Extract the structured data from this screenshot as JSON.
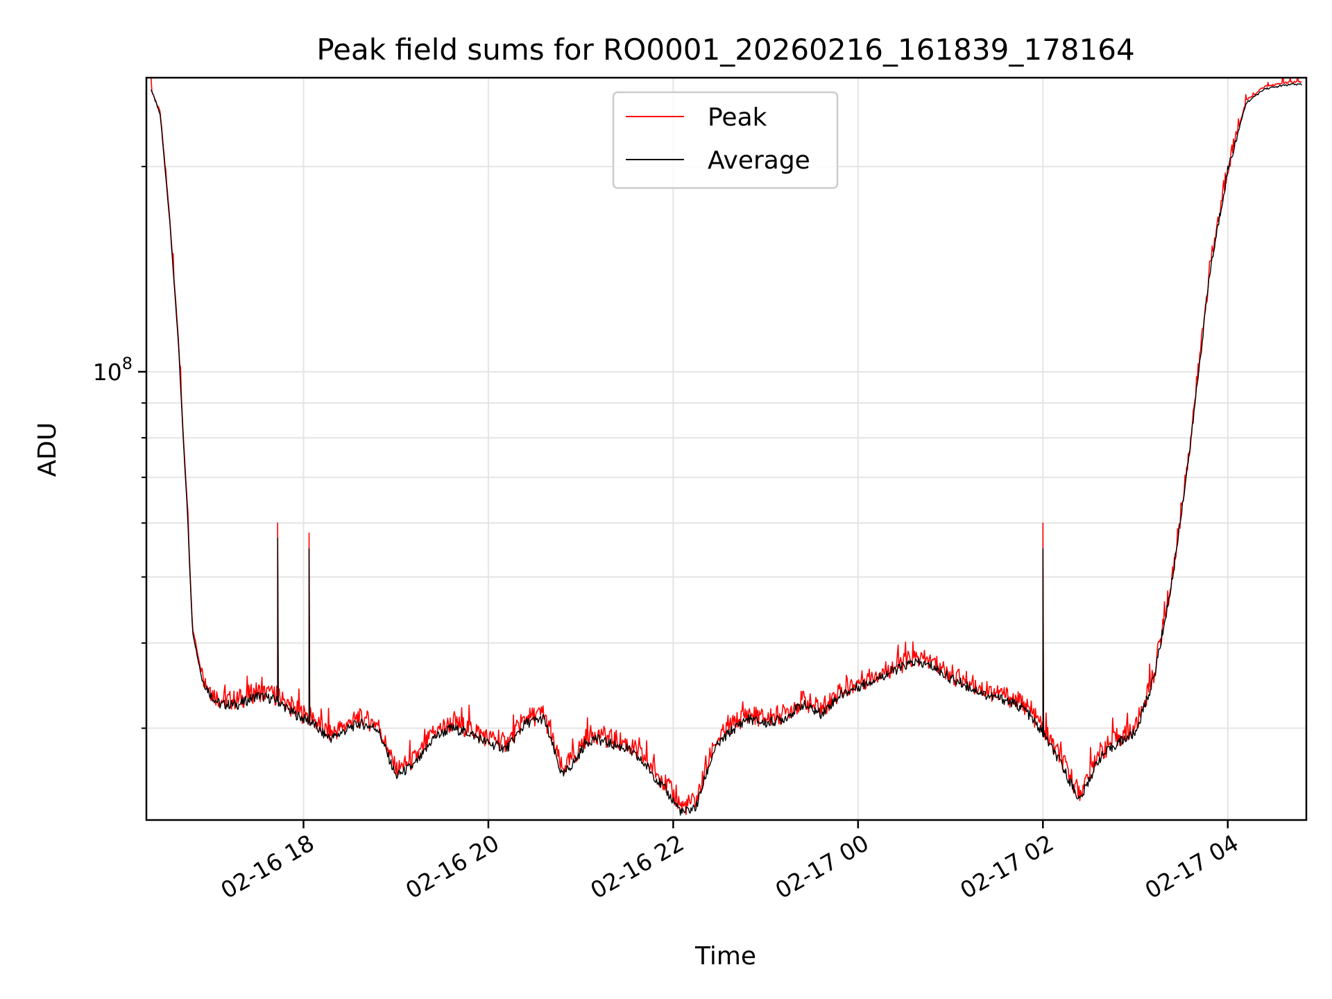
{
  "chart_data": {
    "type": "line",
    "title": "Peak field sums for RO0001_20260216_161839_178164",
    "xlabel": "Time",
    "ylabel": "ADU",
    "yscale": "log",
    "ylim": [
      22000000,
      270000000
    ],
    "xlim": [
      16.3,
      28.85
    ],
    "grid": true,
    "legend_position": "upper center",
    "x_ticks": [
      {
        "value": 18,
        "label": "02-16 18"
      },
      {
        "value": 20,
        "label": "02-16 20"
      },
      {
        "value": 22,
        "label": "02-16 22"
      },
      {
        "value": 24,
        "label": "02-17 00"
      },
      {
        "value": 26,
        "label": "02-17 02"
      },
      {
        "value": 28,
        "label": "02-17 04"
      }
    ],
    "y_ticks": [
      {
        "value": 100000000,
        "base": "10",
        "exponent": "8"
      }
    ],
    "y_minor_ticks": [
      30000000,
      40000000,
      50000000,
      60000000,
      70000000,
      80000000,
      90000000,
      200000000
    ],
    "spikes": [
      {
        "x": 17.72,
        "peak": 60000000,
        "average": 57000000
      },
      {
        "x": 18.06,
        "peak": 58000000,
        "average": 55000000
      },
      {
        "x": 26.0,
        "peak": 60000000,
        "average": 55000000
      }
    ],
    "series": [
      {
        "name": "Peak",
        "color": "#ff0000",
        "x": [
          16.35,
          16.45,
          16.55,
          16.65,
          16.7,
          16.74,
          16.77,
          16.8,
          16.9,
          17.0,
          17.1,
          17.3,
          17.5,
          17.7,
          17.9,
          18.1,
          18.2,
          18.3,
          18.4,
          18.5,
          18.6,
          18.8,
          19.0,
          19.2,
          19.3,
          19.4,
          19.6,
          19.8,
          20.0,
          20.2,
          20.4,
          20.6,
          20.8,
          20.95,
          21.05,
          21.15,
          21.3,
          21.5,
          21.7,
          21.9,
          22.1,
          22.25,
          22.35,
          22.45,
          22.6,
          22.8,
          23.0,
          23.2,
          23.4,
          23.6,
          23.8,
          24.0,
          24.2,
          24.4,
          24.6,
          24.8,
          25.0,
          25.2,
          25.4,
          25.6,
          25.8,
          26.0,
          26.2,
          26.4,
          26.6,
          26.8,
          27.0,
          27.2,
          27.4,
          27.6,
          27.8,
          28.0,
          28.2,
          28.4,
          28.6,
          28.7,
          28.8
        ],
        "values": [
          260000000,
          240000000,
          170000000,
          110000000,
          80000000,
          65000000,
          52000000,
          42000000,
          36000000,
          34000000,
          33000000,
          33000000,
          34000000,
          33500000,
          32000000,
          31000000,
          30000000,
          29500000,
          30000000,
          30500000,
          31000000,
          30500000,
          26000000,
          27000000,
          28000000,
          29500000,
          30500000,
          30000000,
          29000000,
          28500000,
          31000000,
          31500000,
          26000000,
          27500000,
          29000000,
          29500000,
          29000000,
          28500000,
          27000000,
          25000000,
          23000000,
          23500000,
          26000000,
          28500000,
          30000000,
          31500000,
          31000000,
          31500000,
          33000000,
          32000000,
          34000000,
          35000000,
          36000000,
          37000000,
          38000000,
          37500000,
          36000000,
          35000000,
          34000000,
          33500000,
          32500000,
          30000000,
          27000000,
          24000000,
          27500000,
          29000000,
          30000000,
          36000000,
          50000000,
          80000000,
          140000000,
          200000000,
          250000000,
          262000000,
          265000000,
          266000000,
          266000000
        ]
      },
      {
        "name": "Average",
        "color": "#000000",
        "x": [
          16.35,
          16.45,
          16.55,
          16.65,
          16.7,
          16.74,
          16.77,
          16.8,
          16.9,
          17.0,
          17.1,
          17.3,
          17.5,
          17.7,
          17.9,
          18.1,
          18.2,
          18.3,
          18.4,
          18.5,
          18.6,
          18.8,
          19.0,
          19.2,
          19.3,
          19.4,
          19.6,
          19.8,
          20.0,
          20.2,
          20.4,
          20.6,
          20.8,
          20.95,
          21.05,
          21.15,
          21.3,
          21.5,
          21.7,
          21.9,
          22.1,
          22.25,
          22.35,
          22.45,
          22.6,
          22.8,
          23.0,
          23.2,
          23.4,
          23.6,
          23.8,
          24.0,
          24.2,
          24.4,
          24.6,
          24.8,
          25.0,
          25.2,
          25.4,
          25.6,
          25.8,
          26.0,
          26.2,
          26.4,
          26.6,
          26.8,
          27.0,
          27.2,
          27.4,
          27.6,
          27.8,
          28.0,
          28.2,
          28.4,
          28.6,
          28.7,
          28.8
        ],
        "values": [
          260000000,
          238000000,
          168000000,
          108000000,
          79000000,
          64000000,
          51000000,
          41500000,
          35500000,
          33500000,
          32500000,
          32500000,
          33500000,
          33000000,
          31500000,
          30500000,
          29500000,
          29000000,
          29500000,
          30000000,
          30500000,
          30000000,
          25500000,
          26500000,
          27500000,
          29000000,
          30000000,
          29500000,
          28500000,
          28000000,
          30500000,
          31000000,
          25500000,
          27000000,
          28500000,
          29000000,
          28500000,
          28000000,
          26500000,
          24500000,
          22500000,
          23000000,
          25500000,
          28000000,
          29500000,
          31000000,
          30500000,
          31000000,
          32500000,
          31500000,
          33500000,
          34500000,
          35500000,
          36500000,
          37500000,
          37000000,
          35500000,
          34500000,
          33500000,
          33000000,
          32000000,
          29500000,
          26500000,
          23500000,
          27000000,
          28500000,
          29500000,
          35500000,
          49500000,
          79000000,
          138000000,
          198000000,
          248000000,
          260000000,
          263000000,
          264000000,
          264000000
        ]
      }
    ]
  }
}
